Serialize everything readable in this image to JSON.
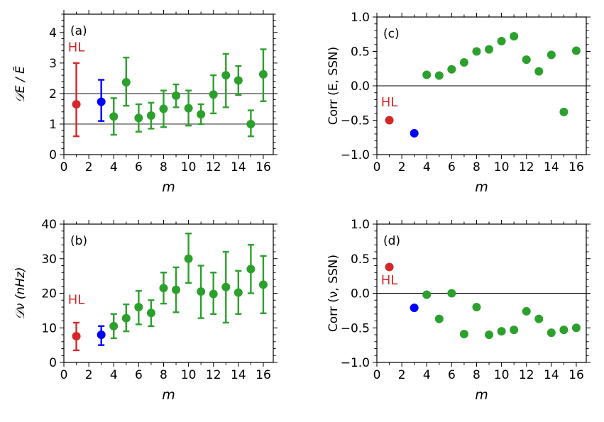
{
  "chart_data": [
    {
      "id": "a",
      "type": "scatter",
      "panel_label": "(a)",
      "xlabel": "m",
      "ylabel_math": "𝒟E / Ē",
      "xlim": [
        0,
        16.8
      ],
      "ylim": [
        0,
        4.6
      ],
      "xticks": [
        0,
        2,
        4,
        6,
        8,
        10,
        12,
        14,
        16
      ],
      "yticks": [
        0,
        1,
        2,
        3,
        4
      ],
      "hlines": [
        1,
        2
      ],
      "annotation": {
        "text": "HL",
        "x": 1,
        "y": 3.38,
        "color": "#d62728"
      },
      "series": [
        {
          "color": "#d62728",
          "points": [
            {
              "x": 1,
              "y": 1.65,
              "lo": 0.6,
              "hi": 3.0
            }
          ]
        },
        {
          "color": "#0000ff",
          "points": [
            {
              "x": 3,
              "y": 1.73,
              "lo": 1.1,
              "hi": 2.45
            }
          ]
        },
        {
          "color": "#2ca02c",
          "points": [
            {
              "x": 4,
              "y": 1.25,
              "lo": 0.65,
              "hi": 1.85
            },
            {
              "x": 5,
              "y": 2.37,
              "lo": 1.6,
              "hi": 3.18
            },
            {
              "x": 6,
              "y": 1.2,
              "lo": 0.75,
              "hi": 1.65
            },
            {
              "x": 7,
              "y": 1.28,
              "lo": 0.85,
              "hi": 1.7
            },
            {
              "x": 8,
              "y": 1.5,
              "lo": 0.9,
              "hi": 2.1
            },
            {
              "x": 9,
              "y": 1.93,
              "lo": 1.55,
              "hi": 2.3
            },
            {
              "x": 10,
              "y": 1.52,
              "lo": 0.95,
              "hi": 2.1
            },
            {
              "x": 11,
              "y": 1.32,
              "lo": 1.0,
              "hi": 1.65
            },
            {
              "x": 12,
              "y": 1.97,
              "lo": 1.35,
              "hi": 2.6
            },
            {
              "x": 13,
              "y": 2.6,
              "lo": 1.55,
              "hi": 3.3
            },
            {
              "x": 14,
              "y": 2.43,
              "lo": 1.95,
              "hi": 2.9
            },
            {
              "x": 15,
              "y": 1.0,
              "lo": 0.6,
              "hi": 1.45
            },
            {
              "x": 16,
              "y": 2.63,
              "lo": 1.75,
              "hi": 3.45
            }
          ]
        }
      ]
    },
    {
      "id": "c",
      "type": "scatter",
      "panel_label": "(c)",
      "xlabel": "m",
      "ylabel": "Corr (E, SSN)",
      "xlim": [
        0,
        16.8
      ],
      "ylim": [
        -1,
        1
      ],
      "xticks": [
        0,
        2,
        4,
        6,
        8,
        10,
        12,
        14,
        16
      ],
      "yticks": [
        -1.0,
        -0.5,
        0.0,
        0.5,
        1.0
      ],
      "ytick_labels": [
        "−1.0",
        "−0.5",
        "0.0",
        "0.5",
        "1.0"
      ],
      "hlines": [
        0
      ],
      "annotation": {
        "text": "HL",
        "x": 1,
        "y": -0.3,
        "color": "#d62728"
      },
      "series": [
        {
          "color": "#d62728",
          "points": [
            {
              "x": 1,
              "y": -0.5
            }
          ]
        },
        {
          "color": "#0000ff",
          "points": [
            {
              "x": 3,
              "y": -0.69
            }
          ]
        },
        {
          "color": "#2ca02c",
          "points": [
            {
              "x": 4,
              "y": 0.16
            },
            {
              "x": 5,
              "y": 0.15
            },
            {
              "x": 6,
              "y": 0.24
            },
            {
              "x": 7,
              "y": 0.34
            },
            {
              "x": 8,
              "y": 0.5
            },
            {
              "x": 9,
              "y": 0.53
            },
            {
              "x": 10,
              "y": 0.65
            },
            {
              "x": 11,
              "y": 0.72
            },
            {
              "x": 12,
              "y": 0.38
            },
            {
              "x": 13,
              "y": 0.21
            },
            {
              "x": 14,
              "y": 0.45
            },
            {
              "x": 15,
              "y": -0.38
            },
            {
              "x": 16,
              "y": 0.51
            }
          ]
        }
      ]
    },
    {
      "id": "b",
      "type": "scatter",
      "panel_label": "(b)",
      "xlabel": "m",
      "ylabel_math": "𝒟ν (nHz)",
      "xlim": [
        0,
        16.8
      ],
      "ylim": [
        0,
        40
      ],
      "xticks": [
        0,
        2,
        4,
        6,
        8,
        10,
        12,
        14,
        16
      ],
      "yticks": [
        0,
        10,
        20,
        30,
        40
      ],
      "hlines": [],
      "annotation": {
        "text": "HL",
        "x": 1,
        "y": 16.9,
        "color": "#d62728"
      },
      "series": [
        {
          "color": "#d62728",
          "points": [
            {
              "x": 1,
              "y": 7.6,
              "lo": 3.5,
              "hi": 11.5
            }
          ]
        },
        {
          "color": "#0000ff",
          "points": [
            {
              "x": 3,
              "y": 8.0,
              "lo": 5.0,
              "hi": 10.5
            }
          ]
        },
        {
          "color": "#2ca02c",
          "points": [
            {
              "x": 4,
              "y": 10.5,
              "lo": 7.0,
              "hi": 14.0
            },
            {
              "x": 5,
              "y": 12.8,
              "lo": 9.0,
              "hi": 16.8
            },
            {
              "x": 6,
              "y": 16.0,
              "lo": 11.0,
              "hi": 20.7
            },
            {
              "x": 7,
              "y": 14.3,
              "lo": 10.5,
              "hi": 18.0
            },
            {
              "x": 8,
              "y": 21.5,
              "lo": 17.0,
              "hi": 26.0
            },
            {
              "x": 9,
              "y": 21.0,
              "lo": 14.5,
              "hi": 27.5
            },
            {
              "x": 10,
              "y": 30.0,
              "lo": 23.0,
              "hi": 37.3
            },
            {
              "x": 11,
              "y": 20.5,
              "lo": 12.8,
              "hi": 28.0
            },
            {
              "x": 12,
              "y": 19.8,
              "lo": 14.0,
              "hi": 26.0
            },
            {
              "x": 13,
              "y": 21.8,
              "lo": 11.5,
              "hi": 32.0
            },
            {
              "x": 14,
              "y": 20.2,
              "lo": 14.0,
              "hi": 26.5
            },
            {
              "x": 15,
              "y": 27.0,
              "lo": 20.0,
              "hi": 34.0
            },
            {
              "x": 16,
              "y": 22.5,
              "lo": 14.2,
              "hi": 30.8
            }
          ]
        }
      ]
    },
    {
      "id": "d",
      "type": "scatter",
      "panel_label": "(d)",
      "xlabel": "m",
      "ylabel": "Corr (ν, SSN)",
      "xlim": [
        0,
        16.8
      ],
      "ylim": [
        -1,
        1
      ],
      "xticks": [
        0,
        2,
        4,
        6,
        8,
        10,
        12,
        14,
        16
      ],
      "yticks": [
        -1.0,
        -0.5,
        0.0,
        0.5,
        1.0
      ],
      "ytick_labels": [
        "−1.0",
        "−0.5",
        "0.0",
        "0.5",
        "1.0"
      ],
      "hlines": [
        0
      ],
      "annotation": {
        "text": "HL",
        "x": 1,
        "y": 0.13,
        "color": "#d62728"
      },
      "series": [
        {
          "color": "#d62728",
          "points": [
            {
              "x": 1,
              "y": 0.38
            }
          ]
        },
        {
          "color": "#0000ff",
          "points": [
            {
              "x": 3,
              "y": -0.21
            }
          ]
        },
        {
          "color": "#2ca02c",
          "points": [
            {
              "x": 4,
              "y": -0.02
            },
            {
              "x": 5,
              "y": -0.37
            },
            {
              "x": 6,
              "y": 0.0
            },
            {
              "x": 7,
              "y": -0.59
            },
            {
              "x": 8,
              "y": -0.2
            },
            {
              "x": 9,
              "y": -0.6
            },
            {
              "x": 10,
              "y": -0.55
            },
            {
              "x": 11,
              "y": -0.53
            },
            {
              "x": 12,
              "y": -0.26
            },
            {
              "x": 13,
              "y": -0.37
            },
            {
              "x": 14,
              "y": -0.57
            },
            {
              "x": 15,
              "y": -0.53
            },
            {
              "x": 16,
              "y": -0.5
            }
          ]
        }
      ]
    }
  ]
}
